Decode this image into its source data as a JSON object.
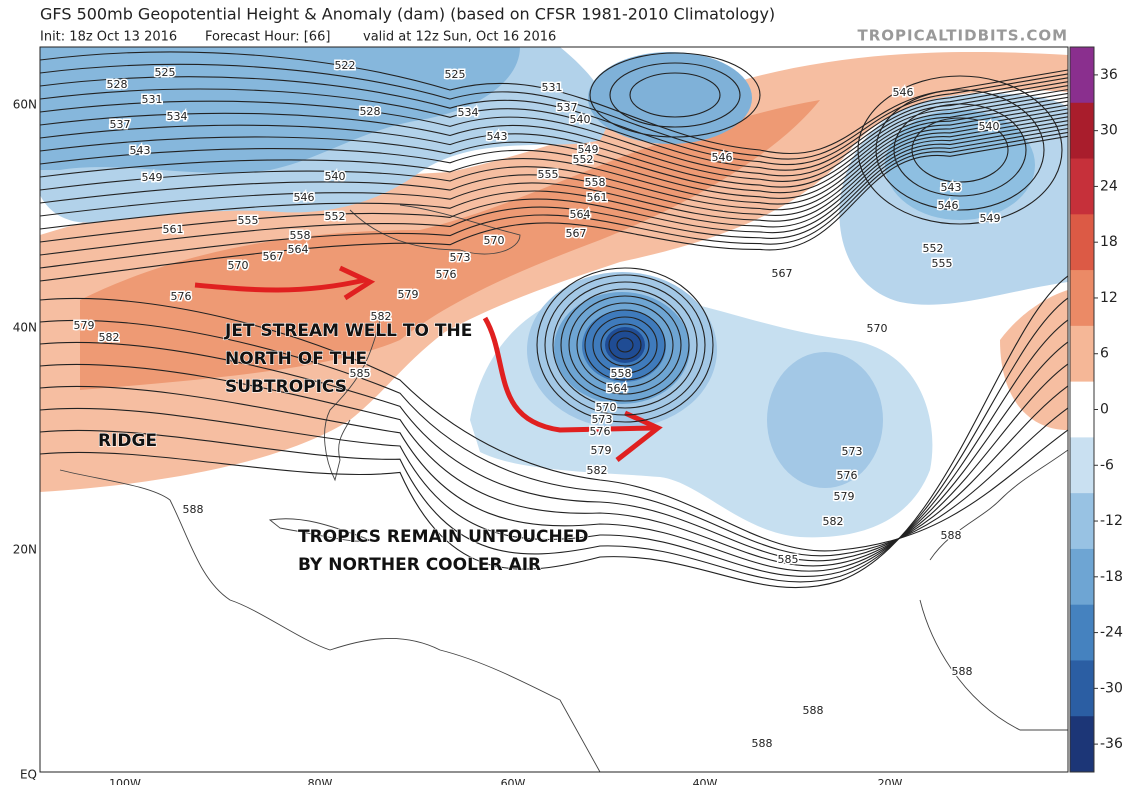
{
  "header": {
    "title": "GFS 500mb Geopotential Height & Anomaly (dam) (based on CFSR 1981-2010 Climatology)",
    "init": "Init: 18z Oct 13 2016",
    "forecast_hour": "Forecast Hour: [66]",
    "valid": "valid at 12z Sun, Oct 16 2016",
    "source": "TROPICALTIDBITS.COM"
  },
  "map": {
    "lat_labels": [
      "60N",
      "40N",
      "20N",
      "EQ"
    ],
    "lon_labels": [
      "100W",
      "80W",
      "60W",
      "40W",
      "20W"
    ],
    "contour_labels": [
      "525",
      "522",
      "525",
      "528",
      "531",
      "534",
      "537",
      "543",
      "549",
      "528",
      "534",
      "531",
      "537",
      "540",
      "543",
      "546",
      "549",
      "552",
      "555",
      "558",
      "561",
      "564",
      "567",
      "570",
      "573",
      "576",
      "579",
      "582",
      "585",
      "540",
      "546",
      "552",
      "555",
      "558",
      "561",
      "564",
      "567",
      "570",
      "576",
      "579",
      "582",
      "588",
      "588",
      "585",
      "588",
      "588",
      "588",
      "558",
      "564",
      "570",
      "573",
      "576",
      "579",
      "582",
      "573",
      "576",
      "579",
      "582",
      "567",
      "570",
      "546",
      "540",
      "543",
      "546",
      "549",
      "552",
      "555"
    ],
    "annotations": [
      {
        "lines": [
          "JET STREAM WELL TO THE",
          "NORTH OF THE",
          "SUBTROPICS"
        ]
      },
      {
        "lines": [
          "RIDGE"
        ]
      },
      {
        "lines": [
          "TROPICS REMAIN UNTOUCHED",
          "BY NORTHER COOLER AIR"
        ]
      }
    ]
  },
  "colorbar": {
    "ticks": [
      36,
      30,
      24,
      18,
      12,
      6,
      0,
      -6,
      -12,
      -18,
      -24,
      -30,
      -36
    ],
    "colors": [
      "#8a2f8e",
      "#a91d2c",
      "#c6303a",
      "#dc5a45",
      "#eb8a66",
      "#f5b797",
      "#ffffff",
      "#c9e0f1",
      "#98c2e3",
      "#6ea5d3",
      "#4582bf",
      "#2b5ea3",
      "#1c3677"
    ]
  }
}
